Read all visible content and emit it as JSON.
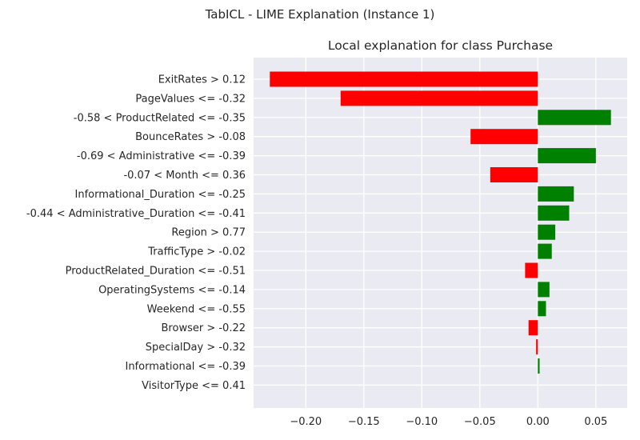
{
  "figure": {
    "suptitle": "TabICL - LIME Explanation (Instance 1)"
  },
  "chart_data": {
    "type": "bar",
    "orientation": "horizontal",
    "title": "Local explanation for class Purchase",
    "xlabel": "",
    "ylabel": "",
    "xlim": [
      -0.245,
      0.077
    ],
    "xticks": [
      -0.2,
      -0.15,
      -0.1,
      -0.05,
      0.0,
      0.05
    ],
    "xtick_labels": [
      "−0.20",
      "−0.15",
      "−0.10",
      "−0.05",
      "0.00",
      "0.05"
    ],
    "grid": true,
    "background": "#eaeaf2",
    "positive_color": "#008000",
    "negative_color": "#ff0000",
    "categories": [
      "ExitRates > 0.12",
      "PageValues <= -0.32",
      "-0.58 < ProductRelated <= -0.35",
      "BounceRates > -0.08",
      "-0.69 < Administrative <= -0.39",
      "-0.07 < Month <= 0.36",
      "Informational_Duration <= -0.25",
      "-0.44 < Administrative_Duration <= -0.41",
      "Region > 0.77",
      "TrafficType > -0.02",
      "ProductRelated_Duration <= -0.51",
      "OperatingSystems <= -0.14",
      "Weekend <= -0.55",
      "Browser > -0.22",
      "SpecialDay > -0.32",
      "Informational <= -0.39",
      "VisitorType <= 0.41"
    ],
    "values": [
      -0.231,
      -0.17,
      0.063,
      -0.058,
      0.05,
      -0.041,
      0.031,
      0.027,
      0.015,
      0.012,
      -0.011,
      0.01,
      0.007,
      -0.008,
      -0.0015,
      0.0015,
      0.0
    ]
  }
}
